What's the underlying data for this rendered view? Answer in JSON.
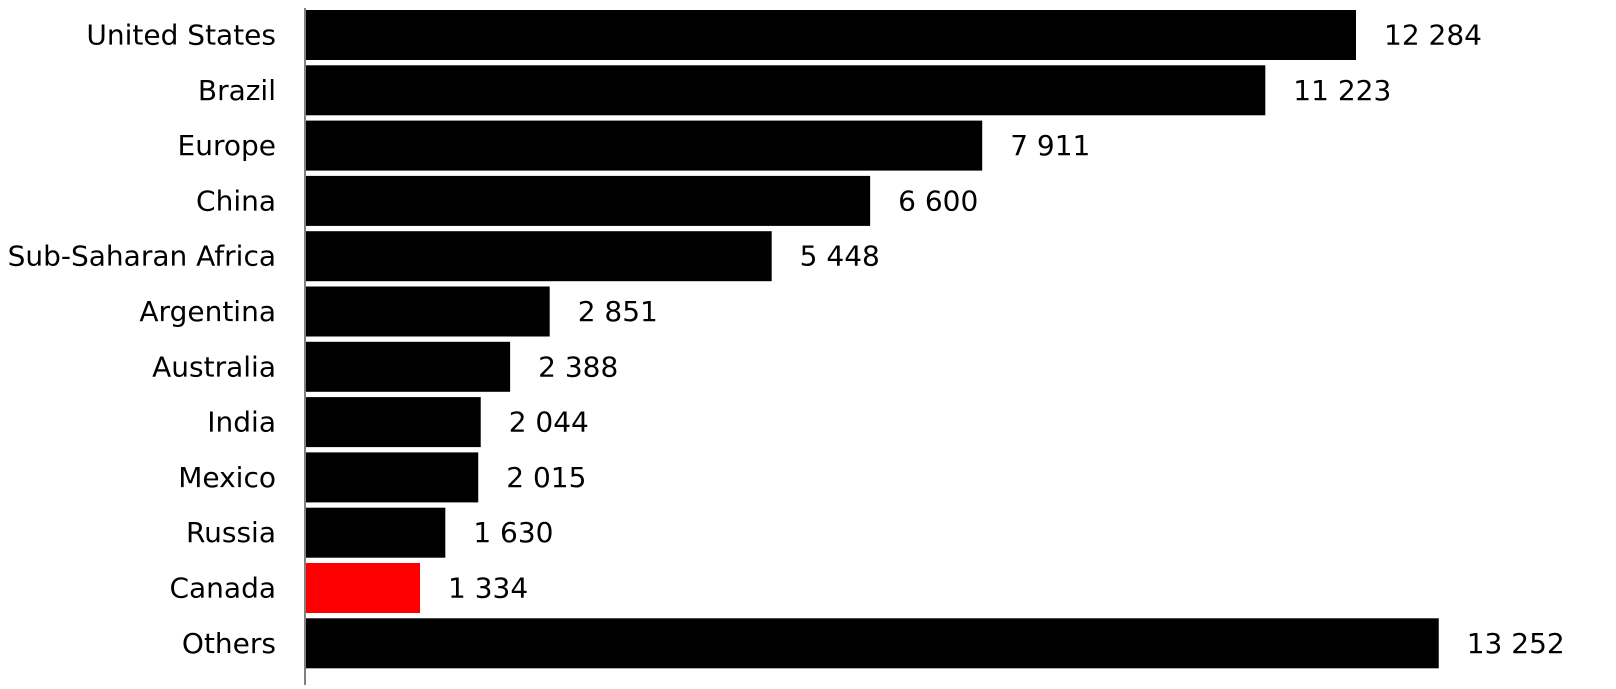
{
  "chart_data": {
    "type": "bar",
    "orientation": "horizontal",
    "categories": [
      "United States",
      "Brazil",
      "Europe",
      "China",
      "Sub-Saharan Africa",
      "Argentina",
      "Australia",
      "India",
      "Mexico",
      "Russia",
      "Canada",
      "Others"
    ],
    "values": [
      12284,
      11223,
      7911,
      6600,
      5448,
      2851,
      2388,
      2044,
      2015,
      1630,
      1334,
      13252
    ],
    "value_labels": [
      "12 284",
      "11 223",
      "7 911",
      "6 600",
      "5 448",
      "2 851",
      "2 388",
      "2 044",
      "2 015",
      "1 630",
      "1 334",
      "13 252"
    ],
    "bar_colors": [
      "#000000",
      "#000000",
      "#000000",
      "#000000",
      "#000000",
      "#000000",
      "#000000",
      "#000000",
      "#000000",
      "#000000",
      "#ff0000",
      "#000000"
    ],
    "highlight_category": "Canada",
    "title": "",
    "xlabel": "",
    "ylabel": "",
    "xlim": [
      0,
      15500
    ],
    "grid": false,
    "legend": "none"
  }
}
